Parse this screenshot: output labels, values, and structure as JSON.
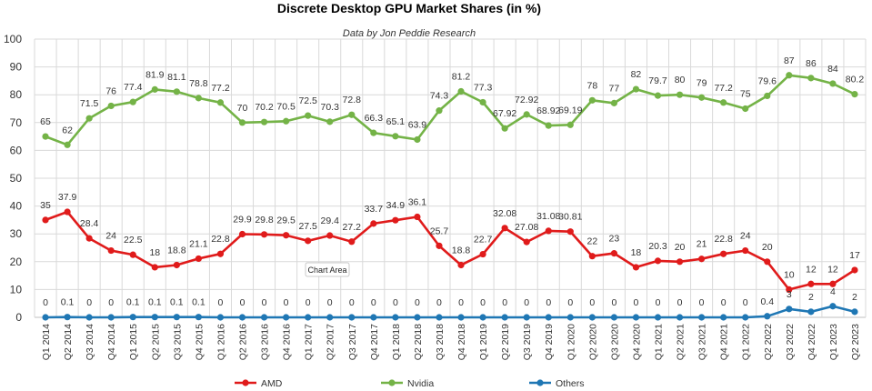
{
  "chart_data": {
    "type": "line",
    "title": "Discrete Desktop GPU Market Shares (in %)",
    "subtitle": "Data by Jon Peddie Research",
    "ylim": [
      0,
      100
    ],
    "yticks": [
      0,
      10,
      20,
      30,
      40,
      50,
      60,
      70,
      80,
      90,
      100
    ],
    "grid": true,
    "legend_position": "bottom",
    "tooltip": "Chart Area",
    "categories": [
      "Q1 2014",
      "Q2 2014",
      "Q3 2014",
      "Q4 2014",
      "Q1 2015",
      "Q2 2015",
      "Q3 2015",
      "Q4 2015",
      "Q1 2016",
      "Q2 2016",
      "Q3 2016",
      "Q4 2016",
      "Q1 2017",
      "Q2 2017",
      "Q3 2017",
      "Q4 2017",
      "Q1 2018",
      "Q2 2018",
      "Q3 2018",
      "Q4 2018",
      "Q1 2019",
      "Q2 2019",
      "Q3 2019",
      "Q4 2019",
      "Q1 2020",
      "Q2 2020",
      "Q3 2020",
      "Q4 2020",
      "Q1 2021",
      "Q2 2021",
      "Q3 2021",
      "Q4 2021",
      "Q1 2022",
      "Q2 2022",
      "Q3 2022",
      "Q4 2022",
      "Q1 2023",
      "Q2 2023"
    ],
    "series": [
      {
        "name": "AMD",
        "color": "#e01b1b",
        "values": [
          35,
          37.9,
          28.4,
          24,
          22.5,
          18,
          18.8,
          21.1,
          22.8,
          29.9,
          29.8,
          29.5,
          27.5,
          29.4,
          27.2,
          33.7,
          34.9,
          36.1,
          25.7,
          18.8,
          22.7,
          32.08,
          27.08,
          31.08,
          30.81,
          22,
          23,
          18,
          20.3,
          20,
          21,
          22.8,
          24,
          20,
          10,
          12,
          12,
          17
        ],
        "labels": [
          "35",
          "37.9",
          "28.4",
          "24",
          "22.5",
          "18",
          "18.8",
          "21.1",
          "22.8",
          "29.9",
          "29.8",
          "29.5",
          "27.5",
          "29.4",
          "27.2",
          "33.7",
          "34.9",
          "36.1",
          "25.7",
          "18.8",
          "22.7",
          "32.08",
          "27.08",
          "31.08",
          "30.81",
          "22",
          "23",
          "18",
          "20.3",
          "20",
          "21",
          "22.8",
          "24",
          "20",
          "10",
          "12",
          "12",
          "17"
        ]
      },
      {
        "name": "Nvidia",
        "color": "#74b347",
        "values": [
          65,
          62,
          71.5,
          76,
          77.4,
          81.9,
          81.1,
          78.8,
          77.2,
          70,
          70.2,
          70.5,
          72.5,
          70.3,
          72.8,
          66.3,
          65.1,
          63.9,
          74.3,
          81.2,
          77.3,
          67.92,
          72.92,
          68.92,
          69.19,
          78,
          77,
          82,
          79.7,
          80,
          79,
          77.2,
          75,
          79.6,
          87,
          86,
          84,
          80.2
        ],
        "labels": [
          "65",
          "62",
          "71.5",
          "76",
          "77.4",
          "81.9",
          "81.1",
          "78.8",
          "77.2",
          "70",
          "70.2",
          "70.5",
          "72.5",
          "70.3",
          "72.8",
          "66.3",
          "65.1",
          "63.9",
          "74.3",
          "81.2",
          "77.3",
          "67.92",
          "72.92",
          "68.92",
          "69.19",
          "78",
          "77",
          "82",
          "79.7",
          "80",
          "79",
          "77.2",
          "75",
          "79.6",
          "87",
          "86",
          "84",
          "80.2"
        ]
      },
      {
        "name": "Others",
        "color": "#1f77b4",
        "values": [
          0,
          0.1,
          0,
          0,
          0.1,
          0.1,
          0.1,
          0.1,
          0,
          0,
          0,
          0,
          0,
          0,
          0,
          0,
          0,
          0,
          0,
          0,
          0,
          0,
          0,
          0,
          0,
          0,
          0,
          0,
          0,
          0,
          0,
          0,
          0,
          0.4,
          3,
          2,
          4,
          2
        ],
        "labels": [
          "0",
          "0.1",
          "0",
          "0",
          "0.1",
          "0.1",
          "0.1",
          "0.1",
          "0",
          "0",
          "0",
          "0",
          "0",
          "0",
          "0",
          "0",
          "0",
          "0",
          "0",
          "0",
          "0",
          "0",
          "0",
          "0",
          "0",
          "0",
          "0",
          "0",
          "0",
          "0",
          "0",
          "0",
          "0",
          "0.4",
          "3",
          "2",
          "4",
          "2"
        ]
      }
    ]
  }
}
